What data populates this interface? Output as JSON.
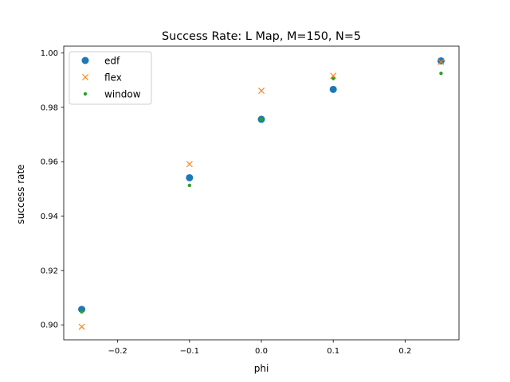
{
  "chart_data": {
    "type": "scatter",
    "title": "Success Rate: L Map, M=150, N=5",
    "xlabel": "phi",
    "ylabel": "success rate",
    "xlim": [
      -0.275,
      0.275
    ],
    "ylim": [
      0.8945,
      1.0025
    ],
    "x_ticks": [
      -0.2,
      -0.1,
      0.0,
      0.1,
      0.2
    ],
    "x_tick_labels": [
      "−0.2",
      "−0.1",
      "0.0",
      "0.1",
      "0.2"
    ],
    "y_ticks": [
      0.9,
      0.92,
      0.94,
      0.96,
      0.98,
      1.0
    ],
    "y_tick_labels": [
      "0.90",
      "0.92",
      "0.94",
      "0.96",
      "0.98",
      "1.00"
    ],
    "grid": false,
    "legend_position": "top-left",
    "series": [
      {
        "name": "edf",
        "marker": "circle",
        "color": "#1f77b4",
        "x": [
          -0.25,
          -0.1,
          0.0,
          0.1,
          0.25
        ],
        "y": [
          0.9057,
          0.9541,
          0.9756,
          0.9866,
          0.9971
        ]
      },
      {
        "name": "flex",
        "marker": "x",
        "color": "#ff7f0e",
        "x": [
          -0.25,
          -0.1,
          0.0,
          0.1,
          0.25
        ],
        "y": [
          0.8993,
          0.9591,
          0.9861,
          0.9916,
          0.9967
        ]
      },
      {
        "name": "window",
        "marker": "dot",
        "color": "#2ca02c",
        "x": [
          -0.25,
          -0.1,
          0.0,
          0.1,
          0.25
        ],
        "y": [
          0.9048,
          0.9513,
          0.9756,
          0.9906,
          0.9925
        ]
      }
    ]
  }
}
